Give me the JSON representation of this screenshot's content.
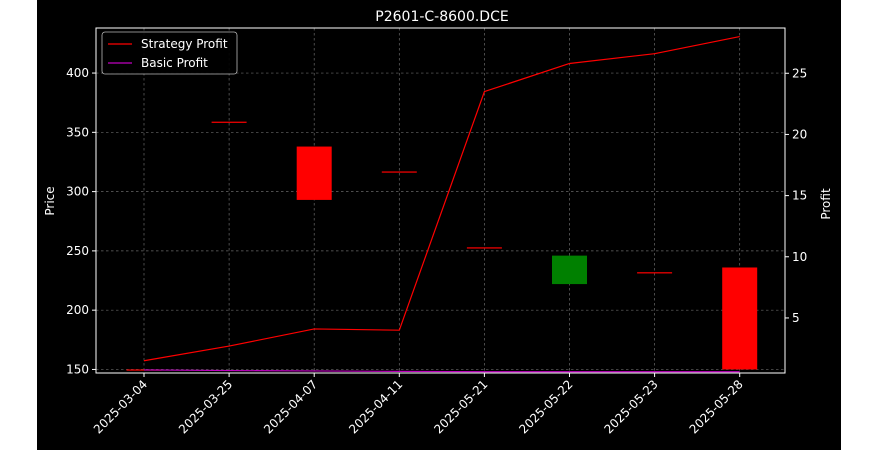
{
  "chart_data": {
    "type": "candlestick+line",
    "title": "P2601-C-8600.DCE",
    "xlabel": "",
    "ylabel_left": "Price",
    "ylabel_right": "Profit",
    "ylim_left": [
      147,
      438
    ],
    "ylim_right": [
      0.5,
      28.7
    ],
    "grid": true,
    "legend_position": "top-left",
    "categories": [
      "2025-03-04",
      "2025-03-25",
      "2025-04-07",
      "2025-04-11",
      "2025-05-21",
      "2025-05-22",
      "2025-05-23",
      "2025-05-28"
    ],
    "yticks_left": [
      150,
      200,
      250,
      300,
      350,
      400
    ],
    "yticks_right": [
      5,
      10,
      15,
      20,
      25
    ],
    "candles": [
      {
        "date": "2025-03-04",
        "open": 150,
        "close": 150,
        "color": "#ff0000"
      },
      {
        "date": "2025-03-25",
        "open": 359,
        "close": 359,
        "color": "#ff0000"
      },
      {
        "date": "2025-04-07",
        "open": 338,
        "close": 293,
        "color": "#ff0000"
      },
      {
        "date": "2025-04-11",
        "open": 317,
        "close": 317,
        "color": "#ff0000"
      },
      {
        "date": "2025-05-21",
        "open": 253,
        "close": 252,
        "color": "#ff0000"
      },
      {
        "date": "2025-05-22",
        "open": 222,
        "close": 246,
        "color": "#008000"
      },
      {
        "date": "2025-05-23",
        "open": 232,
        "close": 232,
        "color": "#ff0000"
      },
      {
        "date": "2025-05-28",
        "open": 236,
        "close": 150,
        "color": "#ff0000"
      }
    ],
    "series": [
      {
        "name": "Strategy Profit",
        "color": "#ff0000",
        "axis": "right",
        "values": [
          1.5,
          2.7,
          4.1,
          4.0,
          23.5,
          25.8,
          26.6,
          28.0
        ]
      },
      {
        "name": "Basic Profit",
        "color": "#bf00bf",
        "axis": "right",
        "values": [
          0.75,
          0.7,
          0.67,
          0.63,
          0.6,
          0.6,
          0.6,
          0.6
        ]
      }
    ]
  }
}
